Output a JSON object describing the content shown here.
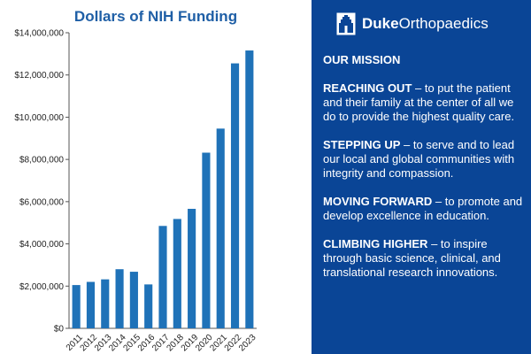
{
  "chart_data": {
    "type": "bar",
    "title": "Dollars of NIH Funding",
    "categories": [
      "2011",
      "2012",
      "2013",
      "2014",
      "2015",
      "2016",
      "2017",
      "2018",
      "2019",
      "2020",
      "2021",
      "2022",
      "2023"
    ],
    "values": [
      2050000,
      2200000,
      2320000,
      2800000,
      2680000,
      2080000,
      4850000,
      5180000,
      5660000,
      8320000,
      9460000,
      12550000,
      13160000
    ],
    "ylim": [
      0,
      14000000
    ],
    "yticks": [
      0,
      2000000,
      4000000,
      6000000,
      8000000,
      10000000,
      12000000,
      14000000
    ],
    "ytick_labels": [
      "$0",
      "$2,000,000",
      "$4,000,000",
      "$6,000,000",
      "$8,000,000",
      "$10,000,000",
      "$12,000,000",
      "$14,000,000"
    ],
    "xlabel": "",
    "ylabel": "",
    "grid": false,
    "bar_color": "#1f72b8"
  },
  "brand": {
    "name_bold": "Duke",
    "name_rest": "Orthopaedics"
  },
  "mission": {
    "heading": "OUR MISSION",
    "items": [
      {
        "keyword": "REACHING OUT",
        "text": " – to put the patient and their family at the center of all we do to provide the highest quality care."
      },
      {
        "keyword": "STEPPING UP",
        "text": " – to serve and to lead our local and global communities with integrity and compassion."
      },
      {
        "keyword": "MOVING FORWARD",
        "text": " – to promote and develop excellence in education."
      },
      {
        "keyword": "CLIMBING HIGHER",
        "text": " – to inspire through basic science, clinical, and translational research innovations."
      }
    ]
  },
  "colors": {
    "panel_bg": "#0a4596",
    "title": "#1f5fa6"
  }
}
